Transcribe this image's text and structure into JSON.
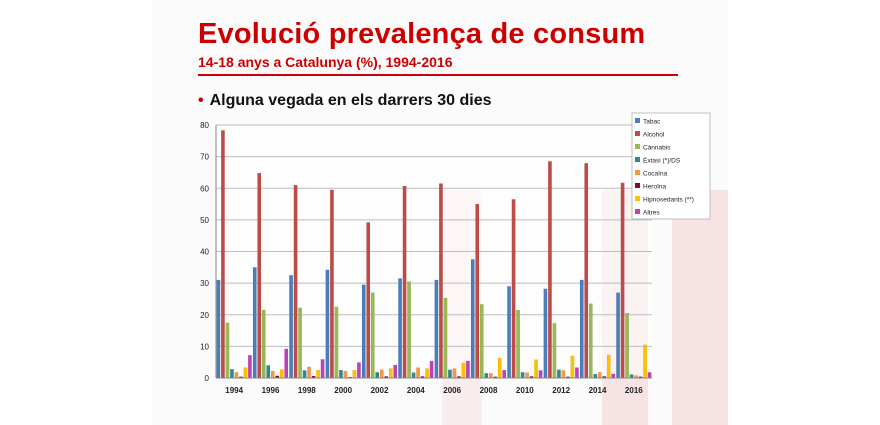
{
  "header": {
    "title": "Evolució prevalença de consum",
    "subtitle": "14-18 anys a Catalunya (%), 1994-2016",
    "bullet_marker": "•",
    "bullet": "Alguna vegada en els darrers 30 dies"
  },
  "chart_data": {
    "type": "bar",
    "title": "",
    "xlabel": "",
    "ylabel": "",
    "ylim": [
      0,
      80
    ],
    "yticks": [
      "0",
      "10",
      "20",
      "30",
      "40",
      "50",
      "60",
      "70",
      "80"
    ],
    "grid": true,
    "legend_position": "right",
    "categories": [
      "1994",
      "1996",
      "1998",
      "2000",
      "2002",
      "2004",
      "2006",
      "2008",
      "2010",
      "2012",
      "2014",
      "2016"
    ],
    "series": [
      {
        "name": "Tabac",
        "color": "#4a7ebb",
        "values": [
          31,
          35,
          32.5,
          34.2,
          29.5,
          31.5,
          31,
          37.5,
          29,
          28.2,
          31,
          27
        ]
      },
      {
        "name": "Alcohol",
        "color": "#be4b48",
        "values": [
          78.3,
          64.8,
          61,
          59.5,
          49.2,
          60.7,
          61.5,
          55,
          56.5,
          68.5,
          67.9,
          61.7
        ]
      },
      {
        "name": "Cànnabis",
        "color": "#98b954",
        "values": [
          17.5,
          21.5,
          22.2,
          22.5,
          27,
          30.5,
          25.3,
          23.3,
          21.5,
          17.3,
          23.5,
          20.5
        ]
      },
      {
        "name": "Èxtasi (*)/DS",
        "color": "#2c8a8c",
        "values": [
          2.8,
          4,
          2.4,
          2.5,
          1.8,
          1.7,
          2.6,
          1.5,
          1.8,
          2.6,
          1.2,
          1.1
        ]
      },
      {
        "name": "Cocaïna",
        "color": "#f79646",
        "values": [
          1.8,
          2.2,
          3.5,
          2.2,
          2.6,
          3.3,
          3,
          1.5,
          1.7,
          2.4,
          1.8,
          0.8
        ]
      },
      {
        "name": "Heroïna",
        "color": "#7f0a2e",
        "values": [
          0.4,
          0.7,
          0.6,
          0.3,
          0.5,
          0.5,
          0.5,
          0.4,
          0.5,
          0.4,
          0.5,
          0.4
        ]
      },
      {
        "name": "Hipnosedants (**)",
        "color": "#ffc000",
        "values": [
          3.3,
          2.7,
          2.5,
          2.5,
          3,
          3,
          4.8,
          6.3,
          5.8,
          7,
          7.3,
          10.5
        ]
      },
      {
        "name": "Altres",
        "color": "#c040b8",
        "values": [
          7.2,
          9.2,
          5.9,
          4.9,
          4.1,
          5.4,
          5.4,
          2.5,
          2.4,
          3.3,
          1.3,
          1.8
        ]
      }
    ]
  }
}
